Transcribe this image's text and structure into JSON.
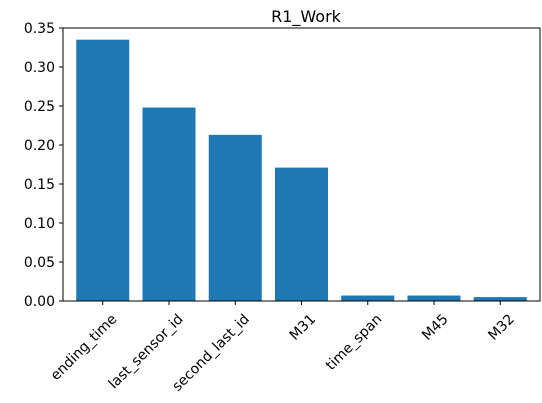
{
  "chart_data": {
    "type": "bar",
    "title": "R1_Work",
    "xlabel": "",
    "ylabel": "",
    "categories": [
      "ending_time",
      "last_sensor_id",
      "second_last_id",
      "M31",
      "time_span",
      "M45",
      "M32"
    ],
    "values": [
      0.335,
      0.248,
      0.213,
      0.171,
      0.007,
      0.007,
      0.005
    ],
    "ylim": [
      0,
      0.35
    ],
    "yticks": [
      "0.00",
      "0.05",
      "0.10",
      "0.15",
      "0.20",
      "0.25",
      "0.30",
      "0.35"
    ],
    "bar_color": "#1f77b4",
    "grid": false,
    "legend": "none"
  }
}
